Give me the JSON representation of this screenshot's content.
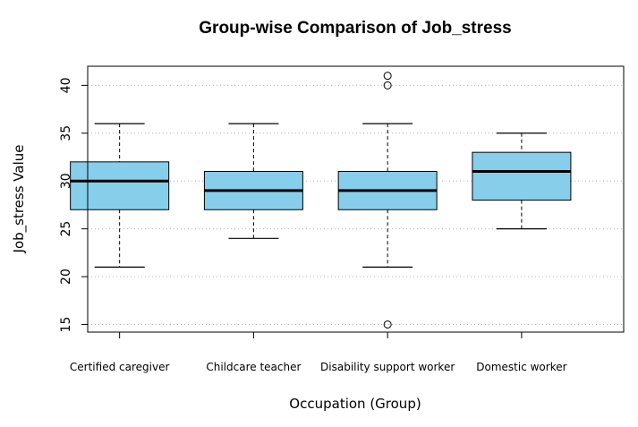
{
  "chart_data": {
    "type": "boxplot",
    "title": "Group-wise Comparison of Job_stress",
    "xlabel": "Occupation (Group)",
    "ylabel": "Job_stress Value",
    "ylim": [
      14.2,
      42
    ],
    "yticks": [
      15,
      20,
      25,
      30,
      35,
      40
    ],
    "grid": true,
    "box_color": "#87CEEB",
    "categories": [
      "Certified caregiver",
      "Childcare teacher",
      "Disability support worker",
      "Domestic worker"
    ],
    "boxes": [
      {
        "name": "Certified caregiver",
        "whisker_low": 21,
        "q1": 27,
        "median": 30,
        "q3": 32,
        "whisker_high": 36,
        "outliers": []
      },
      {
        "name": "Childcare teacher",
        "whisker_low": 24,
        "q1": 27,
        "median": 29,
        "q3": 31,
        "whisker_high": 36,
        "outliers": []
      },
      {
        "name": "Disability support worker",
        "whisker_low": 21,
        "q1": 27,
        "median": 29,
        "q3": 31,
        "whisker_high": 36,
        "outliers": [
          15,
          40,
          41
        ]
      },
      {
        "name": "Domestic worker",
        "whisker_low": 25,
        "q1": 28,
        "median": 31,
        "q3": 33,
        "whisker_high": 35,
        "outliers": []
      }
    ]
  }
}
